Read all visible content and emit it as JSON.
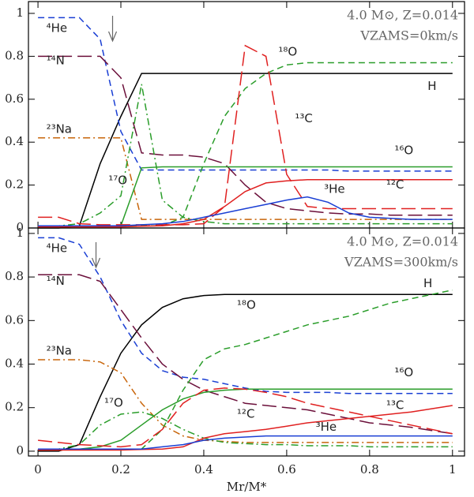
{
  "chart_data": [
    {
      "type": "line",
      "annotations": [
        "4.0 M⊙, Z=0.014",
        "VZAMS=0km/s"
      ],
      "marker_x": 0.18,
      "x": [
        0,
        0.05,
        0.1,
        0.15,
        0.2,
        0.25,
        0.3,
        0.35,
        0.4,
        0.45,
        0.5,
        0.55,
        0.6,
        0.65,
        0.7,
        0.75,
        0.8,
        0.85,
        0.9,
        0.95,
        1
      ],
      "xlim": [
        -0.023,
        1.029
      ],
      "ylim": [
        0,
        1.055
      ],
      "yticks": [
        0,
        0.2,
        0.4,
        0.6,
        0.8,
        1
      ],
      "series": [
        {
          "name": "H",
          "color": "#000000",
          "dash": "solid",
          "values": [
            0,
            0,
            0.01,
            0.3,
            0.52,
            0.72,
            0.72,
            0.72,
            0.72,
            0.72,
            0.72,
            0.72,
            0.72,
            0.72,
            0.72,
            0.72,
            0.72,
            0.72,
            0.72,
            0.72,
            0.72
          ]
        },
        {
          "name": "⁴He",
          "color": "#1a3fd4",
          "dash": "dashed",
          "values": [
            0.98,
            0.98,
            0.98,
            0.88,
            0.45,
            0.27,
            0.27,
            0.27,
            0.27,
            0.27,
            0.27,
            0.27,
            0.27,
            0.27,
            0.27,
            0.265,
            0.265,
            0.265,
            0.265,
            0.265,
            0.265
          ]
        },
        {
          "name": "¹⁴N",
          "color": "#6b0f3a",
          "dash": "longdash",
          "values": [
            0.8,
            0.8,
            0.8,
            0.8,
            0.7,
            0.35,
            0.34,
            0.34,
            0.33,
            0.3,
            0.2,
            0.12,
            0.09,
            0.08,
            0.07,
            0.065,
            0.065,
            0.06,
            0.06,
            0.06,
            0.06
          ]
        },
        {
          "name": "²³Na",
          "color": "#c8650a",
          "dash": "dashdot",
          "values": [
            0.42,
            0.42,
            0.42,
            0.42,
            0.42,
            0.04,
            0.04,
            0.04,
            0.04,
            0.04,
            0.04,
            0.04,
            0.04,
            0.04,
            0.04,
            0.04,
            0.04,
            0.04,
            0.04,
            0.04,
            0.04
          ]
        },
        {
          "name": "¹⁷O",
          "color": "#2a9d2a",
          "dash": "dashdot",
          "values": [
            0.01,
            0.01,
            0.02,
            0.07,
            0.15,
            0.67,
            0.13,
            0.05,
            0.03,
            0.02,
            0.02,
            0.02,
            0.02,
            0.02,
            0.02,
            0.02,
            0.02,
            0.02,
            0.02,
            0.02,
            0.02
          ]
        },
        {
          "name": "¹⁸O",
          "color": "#2a9d2a",
          "dash": "dashed",
          "values": [
            0.01,
            0.01,
            0.01,
            0.01,
            0.01,
            0.01,
            0.01,
            0.05,
            0.3,
            0.52,
            0.65,
            0.72,
            0.76,
            0.77,
            0.77,
            0.77,
            0.77,
            0.77,
            0.77,
            0.77,
            0.77
          ]
        },
        {
          "name": "¹⁶O",
          "color": "#2a9d2a",
          "dash": "solid",
          "values": [
            0.01,
            0.01,
            0.01,
            0.01,
            0.01,
            0.28,
            0.285,
            0.285,
            0.285,
            0.285,
            0.285,
            0.285,
            0.285,
            0.285,
            0.285,
            0.285,
            0.285,
            0.285,
            0.285,
            0.285,
            0.285
          ]
        },
        {
          "name": "¹²C",
          "color": "#e02020",
          "dash": "solid",
          "values": [
            0.005,
            0.005,
            0.005,
            0.005,
            0.005,
            0.008,
            0.01,
            0.02,
            0.04,
            0.1,
            0.17,
            0.21,
            0.22,
            0.225,
            0.225,
            0.225,
            0.225,
            0.225,
            0.225,
            0.225,
            0.225
          ]
        },
        {
          "name": "¹³C",
          "color": "#e02020",
          "dash": "longdash",
          "values": [
            0.05,
            0.05,
            0.02,
            0.015,
            0.015,
            0.015,
            0.015,
            0.015,
            0.02,
            0.1,
            0.85,
            0.8,
            0.25,
            0.1,
            0.09,
            0.09,
            0.09,
            0.09,
            0.09,
            0.09,
            0.09
          ]
        },
        {
          "name": "³He",
          "color": "#1a3fd4",
          "dash": "solid",
          "values": [
            0.01,
            0.01,
            0.01,
            0.01,
            0.01,
            0.015,
            0.02,
            0.03,
            0.05,
            0.07,
            0.09,
            0.11,
            0.13,
            0.145,
            0.12,
            0.07,
            0.05,
            0.045,
            0.04,
            0.04,
            0.04
          ]
        }
      ]
    },
    {
      "type": "line",
      "annotations": [
        "4.0 M⊙, Z=0.014",
        "VZAMS=300km/s"
      ],
      "marker_x": 0.14,
      "xlabel": "Mr/M*",
      "x": [
        0,
        0.05,
        0.1,
        0.15,
        0.2,
        0.25,
        0.3,
        0.35,
        0.4,
        0.45,
        0.5,
        0.55,
        0.6,
        0.65,
        0.7,
        0.75,
        0.8,
        0.85,
        0.9,
        0.95,
        1
      ],
      "xlim": [
        -0.023,
        1.029
      ],
      "xticks": [
        0,
        0.2,
        0.4,
        0.6,
        0.8,
        1
      ],
      "ylim": [
        -0.022,
        1.025
      ],
      "yticks": [
        0,
        0.2,
        0.4,
        0.6,
        0.8,
        1
      ],
      "series": [
        {
          "name": "H",
          "color": "#000000",
          "dash": "solid",
          "values": [
            0,
            0,
            0.03,
            0.25,
            0.45,
            0.58,
            0.66,
            0.7,
            0.715,
            0.72,
            0.72,
            0.72,
            0.72,
            0.72,
            0.72,
            0.72,
            0.72,
            0.72,
            0.72,
            0.72,
            0.72
          ]
        },
        {
          "name": "⁴He",
          "color": "#1a3fd4",
          "dash": "dashed",
          "values": [
            0.98,
            0.98,
            0.95,
            0.8,
            0.6,
            0.45,
            0.37,
            0.34,
            0.33,
            0.31,
            0.29,
            0.275,
            0.27,
            0.27,
            0.27,
            0.265,
            0.265,
            0.265,
            0.265,
            0.265,
            0.265
          ]
        },
        {
          "name": "¹⁴N",
          "color": "#6b0f3a",
          "dash": "longdash",
          "values": [
            0.81,
            0.81,
            0.81,
            0.78,
            0.65,
            0.52,
            0.4,
            0.33,
            0.28,
            0.25,
            0.22,
            0.21,
            0.2,
            0.19,
            0.17,
            0.15,
            0.13,
            0.12,
            0.11,
            0.095,
            0.08
          ]
        },
        {
          "name": "²³Na",
          "color": "#c8650a",
          "dash": "dashdot",
          "values": [
            0.42,
            0.42,
            0.42,
            0.41,
            0.36,
            0.22,
            0.12,
            0.07,
            0.05,
            0.045,
            0.04,
            0.04,
            0.04,
            0.04,
            0.04,
            0.04,
            0.04,
            0.04,
            0.04,
            0.04,
            0.04
          ]
        },
        {
          "name": "¹⁷O",
          "color": "#2a9d2a",
          "dash": "dashdot",
          "values": [
            0.01,
            0.01,
            0.03,
            0.12,
            0.17,
            0.18,
            0.15,
            0.1,
            0.06,
            0.04,
            0.035,
            0.03,
            0.03,
            0.025,
            0.025,
            0.025,
            0.02,
            0.02,
            0.02,
            0.02,
            0.02
          ]
        },
        {
          "name": "¹⁸O",
          "color": "#2a9d2a",
          "dash": "dashed",
          "values": [
            0.01,
            0.01,
            0.01,
            0.01,
            0.01,
            0.01,
            0.1,
            0.28,
            0.42,
            0.47,
            0.49,
            0.52,
            0.55,
            0.58,
            0.6,
            0.62,
            0.65,
            0.68,
            0.7,
            0.72,
            0.74
          ]
        },
        {
          "name": "¹⁶O",
          "color": "#2a9d2a",
          "dash": "solid",
          "values": [
            0.01,
            0.01,
            0.01,
            0.02,
            0.05,
            0.12,
            0.19,
            0.24,
            0.27,
            0.28,
            0.285,
            0.285,
            0.285,
            0.285,
            0.285,
            0.285,
            0.285,
            0.285,
            0.285,
            0.285,
            0.285
          ]
        },
        {
          "name": "¹²C",
          "color": "#e02020",
          "dash": "solid",
          "values": [
            0.005,
            0.005,
            0.005,
            0.005,
            0.005,
            0.008,
            0.01,
            0.02,
            0.06,
            0.08,
            0.09,
            0.1,
            0.115,
            0.13,
            0.14,
            0.15,
            0.16,
            0.17,
            0.18,
            0.195,
            0.21
          ]
        },
        {
          "name": "¹³C",
          "color": "#e02020",
          "dash": "longdash",
          "values": [
            0.05,
            0.04,
            0.03,
            0.025,
            0.02,
            0.03,
            0.1,
            0.22,
            0.28,
            0.29,
            0.285,
            0.27,
            0.25,
            0.22,
            0.2,
            0.18,
            0.16,
            0.14,
            0.12,
            0.1,
            0.08
          ]
        },
        {
          "name": "³He",
          "color": "#1a3fd4",
          "dash": "solid",
          "values": [
            0.01,
            0.01,
            0.01,
            0.01,
            0.01,
            0.01,
            0.02,
            0.03,
            0.05,
            0.06,
            0.065,
            0.07,
            0.07,
            0.07,
            0.07,
            0.07,
            0.07,
            0.07,
            0.07,
            0.07,
            0.07
          ]
        }
      ]
    }
  ]
}
